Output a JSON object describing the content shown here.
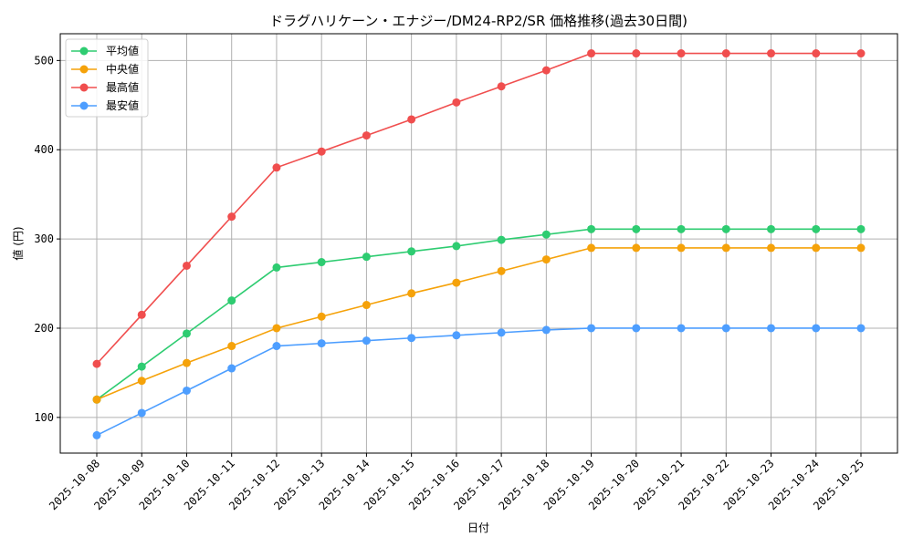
{
  "chart_data": {
    "type": "line",
    "title": "ドラグハリケーン・エナジー/DM24-RP2/SR 価格推移(過去30日間)",
    "xlabel": "日付",
    "ylabel": "値 (円)",
    "ylim": [
      60,
      530
    ],
    "yticks": [
      100,
      200,
      300,
      400,
      500
    ],
    "grid": true,
    "legend_position": "upper left",
    "categories": [
      "2025-10-08",
      "2025-10-09",
      "2025-10-10",
      "2025-10-11",
      "2025-10-12",
      "2025-10-13",
      "2025-10-14",
      "2025-10-15",
      "2025-10-16",
      "2025-10-17",
      "2025-10-18",
      "2025-10-19",
      "2025-10-20",
      "2025-10-21",
      "2025-10-22",
      "2025-10-23",
      "2025-10-24",
      "2025-10-25"
    ],
    "series": [
      {
        "name": "平均値",
        "color": "#2ecc71",
        "values": [
          120,
          157,
          194,
          231,
          268,
          274,
          280,
          286,
          292,
          299,
          305,
          311,
          311,
          311,
          311,
          311,
          311,
          311
        ]
      },
      {
        "name": "中央値",
        "color": "#f5a20a",
        "values": [
          120,
          141,
          161,
          180,
          200,
          213,
          226,
          239,
          251,
          264,
          277,
          290,
          290,
          290,
          290,
          290,
          290,
          290
        ]
      },
      {
        "name": "最高値",
        "color": "#f04e4e",
        "values": [
          160,
          215,
          270,
          325,
          380,
          398,
          416,
          434,
          453,
          471,
          489,
          508,
          508,
          508,
          508,
          508,
          508,
          508
        ]
      },
      {
        "name": "最安値",
        "color": "#4d9eff",
        "values": [
          80,
          105,
          130,
          155,
          180,
          183,
          186,
          189,
          192,
          195,
          198,
          200,
          200,
          200,
          200,
          200,
          200,
          200
        ]
      }
    ]
  }
}
